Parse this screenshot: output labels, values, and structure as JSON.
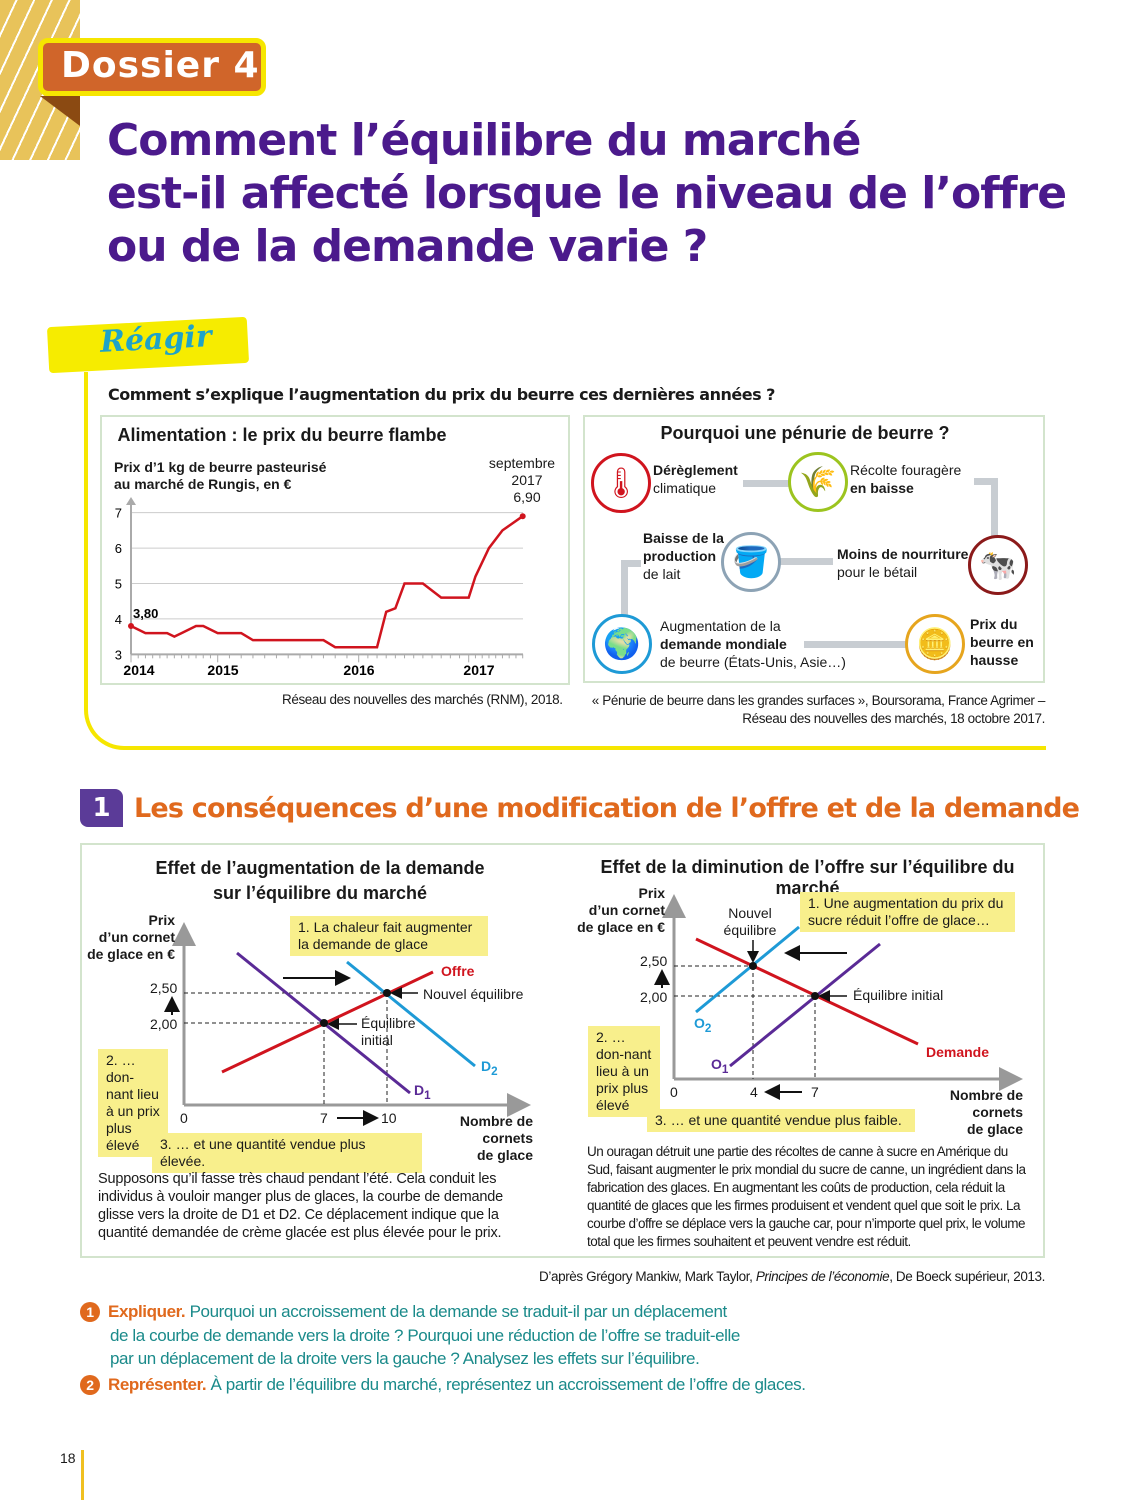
{
  "header": {
    "dossier": "Dossier 4",
    "title_lines": [
      "Comment l’équilibre du marché",
      "est-il affecté lorsque le niveau de l’offre",
      "ou de la demande varie ?"
    ]
  },
  "reagir": {
    "label": "Réagir",
    "question": "Comment s’explique l’augmentation du prix du beurre ces dernières années ?"
  },
  "butter_chart": {
    "source": "Réseau des nouvelles des marchés (RNM), 2018."
  },
  "chart_data": {
    "type": "line",
    "title": "Alimentation : le prix du beurre flambe",
    "ylabel": "Prix d’1 kg de beurre pasteurisé au marché de Rungis, en €",
    "ylim": [
      3,
      7
    ],
    "yticks": [
      "3",
      "4",
      "5",
      "6",
      "7"
    ],
    "xticks": [
      "2014",
      "2015",
      "2016",
      "2017"
    ],
    "grid": true,
    "color": "#d0141e",
    "annotations": {
      "start": "3,80",
      "end_label_1": "septembre",
      "end_label_2": "2017",
      "end_value": "6,90"
    },
    "points": [
      {
        "date": "2014-01",
        "value": 3.8
      },
      {
        "date": "2014-03",
        "value": 3.6
      },
      {
        "date": "2014-06",
        "value": 3.6
      },
      {
        "date": "2014-07",
        "value": 3.5
      },
      {
        "date": "2014-08",
        "value": 3.6
      },
      {
        "date": "2014-10",
        "value": 3.8
      },
      {
        "date": "2014-11",
        "value": 3.8
      },
      {
        "date": "2015-01",
        "value": 3.6
      },
      {
        "date": "2015-03",
        "value": 3.6
      },
      {
        "date": "2015-04",
        "value": 3.4
      },
      {
        "date": "2015-10",
        "value": 3.4
      },
      {
        "date": "2015-11",
        "value": 3.2
      },
      {
        "date": "2016-03",
        "value": 3.2
      },
      {
        "date": "2016-04",
        "value": 4.2
      },
      {
        "date": "2016-05",
        "value": 4.3
      },
      {
        "date": "2016-06",
        "value": 5.0
      },
      {
        "date": "2016-08",
        "value": 5.0
      },
      {
        "date": "2016-10",
        "value": 4.6
      },
      {
        "date": "2017-01",
        "value": 4.6
      },
      {
        "date": "2017-02",
        "value": 5.2
      },
      {
        "date": "2017-04",
        "value": 6.0
      },
      {
        "date": "2017-06",
        "value": 6.5
      },
      {
        "date": "2017-09",
        "value": 6.9
      }
    ]
  },
  "penurie": {
    "title": "Pourquoi une pénurie de beurre ?",
    "items": [
      {
        "bold": "Dérèglement",
        "text": "climatique",
        "icon": "climate-thermometer-icon",
        "color": "#d0141e"
      },
      {
        "bold": "en baisse",
        "text": "Récolte fouragère",
        "icon": "grass-icon",
        "color": "#9cc41f"
      },
      {
        "bold": "Moins de nourriture",
        "text": "pour le bétail",
        "icon": "cow-icon",
        "color": "#8b1a1a"
      },
      {
        "bold": "Baisse de la production",
        "text": "de lait",
        "icon": "milk-bucket-icon",
        "color": "#8da3b5"
      },
      {
        "bold": "demande mondiale",
        "text_before": "Augmentation de la",
        "text": "de beurre (États-Unis, Asie…)",
        "icon": "globe-icon",
        "color": "#1e9ad6"
      },
      {
        "bold": "Prix du beurre en hausse",
        "icon": "coins-icon",
        "color": "#e6a51e"
      }
    ],
    "source_1": "« Pénurie de beurre dans les grandes surfaces », Boursorama, France Agrimer –",
    "source_2": "Réseau des nouvelles des marchés, 18 octobre 2017."
  },
  "section1": {
    "number": "1",
    "title": "Les conséquences d’une modification de l’offre et de la demande",
    "left": {
      "title_1": "Effet de l’augmentation de la demande",
      "title_2": "sur l’équilibre du marché",
      "ylabel_1": "Prix",
      "ylabel_2": "d’un cornet",
      "ylabel_3": "de glace en €",
      "y_ticks": [
        "2,50",
        "2,00"
      ],
      "x_ticks": [
        "0",
        "7",
        "10"
      ],
      "xlabel_1": "Nombre de",
      "xlabel_2": "cornets",
      "xlabel_3": "de glace",
      "curve_offre": "Offre",
      "curve_d1": "D",
      "curve_d1_sub": "1",
      "curve_d2": "D",
      "curve_d2_sub": "2",
      "new_eq": "Nouvel équilibre",
      "init_eq_1": "Équilibre",
      "init_eq_2": "initial",
      "note_1": "1. La chaleur fait augmenter la demande de glace",
      "note_2": "2. …don-nant lieu à un prix plus élevé",
      "note_3": "3. … et une quantité vendue plus élevée.",
      "text": "Supposons qu’il fasse très chaud pendant l’été. Cela conduit les individus à vouloir manger plus de glaces, la courbe de demande glisse vers la droite de D1 et D2. Ce déplacement indique que la quantité demandée de crème glacée est plus élevée pour le prix."
    },
    "right": {
      "title": "Effet de la diminution de l’offre sur l’équilibre du marché",
      "ylabel_1": "Prix",
      "ylabel_2": "d’un cornet",
      "ylabel_3": "de glace en €",
      "y_ticks": [
        "2,50",
        "2,00"
      ],
      "x_ticks": [
        "0",
        "4",
        "7"
      ],
      "xlabel_1": "Nombre de",
      "xlabel_2": "cornets",
      "xlabel_3": "de glace",
      "curve_demande": "Demande",
      "curve_o1": "O",
      "curve_o1_sub": "1",
      "curve_o2": "O",
      "curve_o2_sub": "2",
      "new_eq_1": "Nouvel",
      "new_eq_2": "équilibre",
      "init_eq": "Équilibre initial",
      "note_1": "1. Une augmentation du prix du sucre réduit l’offre de glace…",
      "note_2": "2. …don-nant lieu à un prix plus élevé",
      "note_3": "3. … et une quantité vendue plus faible.",
      "text": "Un ouragan détruit une partie des récoltes de canne à sucre en Amérique du Sud, faisant augmenter le prix mondial du sucre de canne, un ingrédient dans la fabrication des glaces. En augmentant les coûts de production, cela réduit la quantité de glaces que les firmes produisent et vendent quel que soit le prix. La courbe d’offre se déplace vers la gauche car, pour n’importe quel prix, le volume total que les firmes souhaitent et peuvent vendre est réduit."
    },
    "source_before": "D’après Grégory Mankiw, Mark Taylor, ",
    "source_title": "Principes de l’économie",
    "source_after": ", De Boeck supérieur, 2013."
  },
  "questions": [
    {
      "num": "1",
      "key": "Expliquer.",
      "lines": [
        "Pourquoi un accroissement de la demande se traduit-il par un déplacement",
        "de la courbe de demande vers la droite ? Pourquoi une réduction de l’offre se traduit-elle",
        "par un déplacement de la droite vers la gauche ? Analysez les effets sur l’équilibre."
      ]
    },
    {
      "num": "2",
      "key": "Représenter.",
      "lines": [
        "À partir de l’équilibre du marché, représentez un accroissement de l’offre de glaces."
      ]
    }
  ],
  "page_number": "18"
}
